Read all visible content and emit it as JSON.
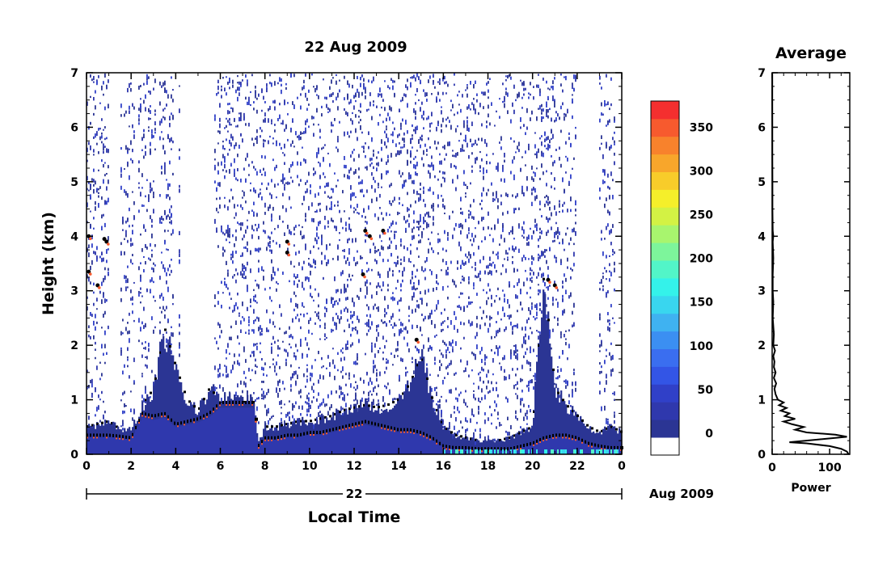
{
  "chart_data": [
    {
      "type": "heatmap",
      "title": "22 Aug 2009",
      "ylabel": "Height (km)",
      "xlabel": "Local Time",
      "x_ticks": [
        "0",
        "2",
        "4",
        "6",
        "8",
        "10",
        "12",
        "14",
        "16",
        "18",
        "20",
        "22",
        "0"
      ],
      "y_ticks": [
        "0",
        "1",
        "2",
        "3",
        "4",
        "5",
        "6",
        "7"
      ],
      "xlim": [
        0,
        24
      ],
      "ylim": [
        0,
        7
      ],
      "date_axis": {
        "day": "22",
        "month_year": "Aug 2009"
      },
      "colorbar": {
        "ticks": [
          "0",
          "50",
          "100",
          "150",
          "200",
          "250",
          "300",
          "350"
        ],
        "range": [
          -25,
          380
        ],
        "colors": [
          "#ffffff",
          "#2b3594",
          "#2f38ad",
          "#3040c8",
          "#3355e6",
          "#3a6ef0",
          "#3b8ff2",
          "#3fb2f1",
          "#39d6ef",
          "#34f2ea",
          "#52f5c8",
          "#7df59b",
          "#a8f56e",
          "#d3f244",
          "#f5ef2a",
          "#f8cc2a",
          "#f8a62b",
          "#f8822c",
          "#f75a2e",
          "#f42f2f"
        ]
      },
      "boundary_layer_top_km": [
        [
          0.0,
          0.35
        ],
        [
          0.5,
          0.35
        ],
        [
          1.0,
          0.35
        ],
        [
          1.5,
          0.33
        ],
        [
          2.0,
          0.3
        ],
        [
          2.5,
          0.75
        ],
        [
          3.0,
          0.7
        ],
        [
          3.5,
          0.75
        ],
        [
          4.0,
          0.55
        ],
        [
          4.5,
          0.6
        ],
        [
          5.0,
          0.65
        ],
        [
          5.5,
          0.75
        ],
        [
          6.0,
          0.95
        ],
        [
          6.5,
          0.95
        ],
        [
          7.0,
          0.95
        ],
        [
          7.5,
          0.95
        ],
        [
          7.7,
          0.15
        ],
        [
          8.0,
          0.3
        ],
        [
          8.5,
          0.3
        ],
        [
          9.0,
          0.35
        ],
        [
          9.5,
          0.35
        ],
        [
          10.0,
          0.4
        ],
        [
          10.5,
          0.4
        ],
        [
          11.0,
          0.45
        ],
        [
          11.5,
          0.5
        ],
        [
          12.0,
          0.55
        ],
        [
          12.5,
          0.6
        ],
        [
          13.0,
          0.55
        ],
        [
          13.5,
          0.5
        ],
        [
          14.0,
          0.45
        ],
        [
          14.5,
          0.45
        ],
        [
          15.0,
          0.4
        ],
        [
          15.5,
          0.3
        ],
        [
          16.0,
          0.15
        ],
        [
          16.5,
          0.12
        ],
        [
          17.0,
          0.12
        ],
        [
          17.5,
          0.1
        ],
        [
          18.0,
          0.1
        ],
        [
          18.5,
          0.1
        ],
        [
          19.0,
          0.1
        ],
        [
          19.5,
          0.15
        ],
        [
          20.0,
          0.2
        ],
        [
          20.5,
          0.3
        ],
        [
          21.0,
          0.35
        ],
        [
          21.5,
          0.35
        ],
        [
          22.0,
          0.3
        ],
        [
          22.5,
          0.2
        ],
        [
          23.0,
          0.15
        ],
        [
          23.5,
          0.12
        ],
        [
          24.0,
          0.12
        ]
      ],
      "aerosol_layer_top_km": [
        [
          0.0,
          0.5
        ],
        [
          0.5,
          0.55
        ],
        [
          1.0,
          0.6
        ],
        [
          1.5,
          0.45
        ],
        [
          2.0,
          0.45
        ],
        [
          2.5,
          0.9
        ],
        [
          3.0,
          1.2
        ],
        [
          3.5,
          2.3
        ],
        [
          4.0,
          1.6
        ],
        [
          4.5,
          1.0
        ],
        [
          5.0,
          0.8
        ],
        [
          5.5,
          1.2
        ],
        [
          6.0,
          1.0
        ],
        [
          6.5,
          1.0
        ],
        [
          7.0,
          1.0
        ],
        [
          7.5,
          1.0
        ],
        [
          7.7,
          0.2
        ],
        [
          8.0,
          0.5
        ],
        [
          8.5,
          0.5
        ],
        [
          9.0,
          0.55
        ],
        [
          9.5,
          0.6
        ],
        [
          10.0,
          0.6
        ],
        [
          10.5,
          0.65
        ],
        [
          11.0,
          0.7
        ],
        [
          11.5,
          0.8
        ],
        [
          12.0,
          0.85
        ],
        [
          12.5,
          0.9
        ],
        [
          13.0,
          0.85
        ],
        [
          13.5,
          0.9
        ],
        [
          14.0,
          1.0
        ],
        [
          14.5,
          1.3
        ],
        [
          15.0,
          1.8
        ],
        [
          15.5,
          1.0
        ],
        [
          16.0,
          0.5
        ],
        [
          16.5,
          0.35
        ],
        [
          17.0,
          0.3
        ],
        [
          17.5,
          0.25
        ],
        [
          18.0,
          0.25
        ],
        [
          18.5,
          0.25
        ],
        [
          19.0,
          0.3
        ],
        [
          19.5,
          0.4
        ],
        [
          20.0,
          0.5
        ],
        [
          20.5,
          3.3
        ],
        [
          21.0,
          1.2
        ],
        [
          21.5,
          0.9
        ],
        [
          22.0,
          0.7
        ],
        [
          22.5,
          0.5
        ],
        [
          23.0,
          0.4
        ],
        [
          23.5,
          0.5
        ],
        [
          24.0,
          0.4
        ]
      ],
      "elevated_features_km": [
        [
          0.1,
          4.0
        ],
        [
          0.1,
          3.35
        ],
        [
          0.5,
          3.1
        ],
        [
          0.8,
          3.95
        ],
        [
          0.9,
          3.9
        ],
        [
          9.0,
          3.7
        ],
        [
          9.0,
          3.9
        ],
        [
          12.5,
          4.1
        ],
        [
          12.7,
          4.0
        ],
        [
          13.3,
          4.1
        ],
        [
          12.4,
          3.3
        ],
        [
          20.7,
          3.2
        ],
        [
          21.0,
          3.1
        ],
        [
          14.8,
          2.1
        ]
      ]
    },
    {
      "type": "line",
      "title": "Average",
      "xlabel": "Power",
      "ylabel": "",
      "x_ticks": [
        "0",
        "100"
      ],
      "y_ticks": [
        "0",
        "1",
        "2",
        "3",
        "4",
        "5",
        "6",
        "7"
      ],
      "xlim": [
        0,
        135
      ],
      "ylim": [
        0,
        7
      ],
      "series": [
        {
          "points": [
            [
              133,
              0.0
            ],
            [
              130,
              0.05
            ],
            [
              120,
              0.1
            ],
            [
              100,
              0.15
            ],
            [
              60,
              0.2
            ],
            [
              30,
              0.22
            ],
            [
              80,
              0.27
            ],
            [
              130,
              0.32
            ],
            [
              110,
              0.36
            ],
            [
              60,
              0.4
            ],
            [
              40,
              0.45
            ],
            [
              55,
              0.5
            ],
            [
              35,
              0.55
            ],
            [
              20,
              0.6
            ],
            [
              40,
              0.65
            ],
            [
              22,
              0.7
            ],
            [
              30,
              0.75
            ],
            [
              15,
              0.8
            ],
            [
              25,
              0.85
            ],
            [
              12,
              0.9
            ],
            [
              20,
              0.95
            ],
            [
              10,
              1.0
            ],
            [
              6,
              1.1
            ],
            [
              4,
              1.2
            ],
            [
              7,
              1.3
            ],
            [
              3,
              1.4
            ],
            [
              6,
              1.5
            ],
            [
              3,
              1.6
            ],
            [
              4,
              1.7
            ],
            [
              2,
              1.8
            ],
            [
              5,
              1.9
            ],
            [
              2,
              2.0
            ],
            [
              3,
              2.2
            ],
            [
              1,
              2.5
            ],
            [
              2,
              2.8
            ],
            [
              1,
              3.0
            ],
            [
              1,
              3.3
            ],
            [
              2,
              3.6
            ],
            [
              1,
              3.9
            ],
            [
              2,
              4.0
            ],
            [
              1,
              4.1
            ],
            [
              0.5,
              4.5
            ],
            [
              0.5,
              5.0
            ],
            [
              0.3,
              5.5
            ],
            [
              0.3,
              6.0
            ],
            [
              0.2,
              6.5
            ],
            [
              0.2,
              7.0
            ]
          ]
        }
      ]
    }
  ]
}
